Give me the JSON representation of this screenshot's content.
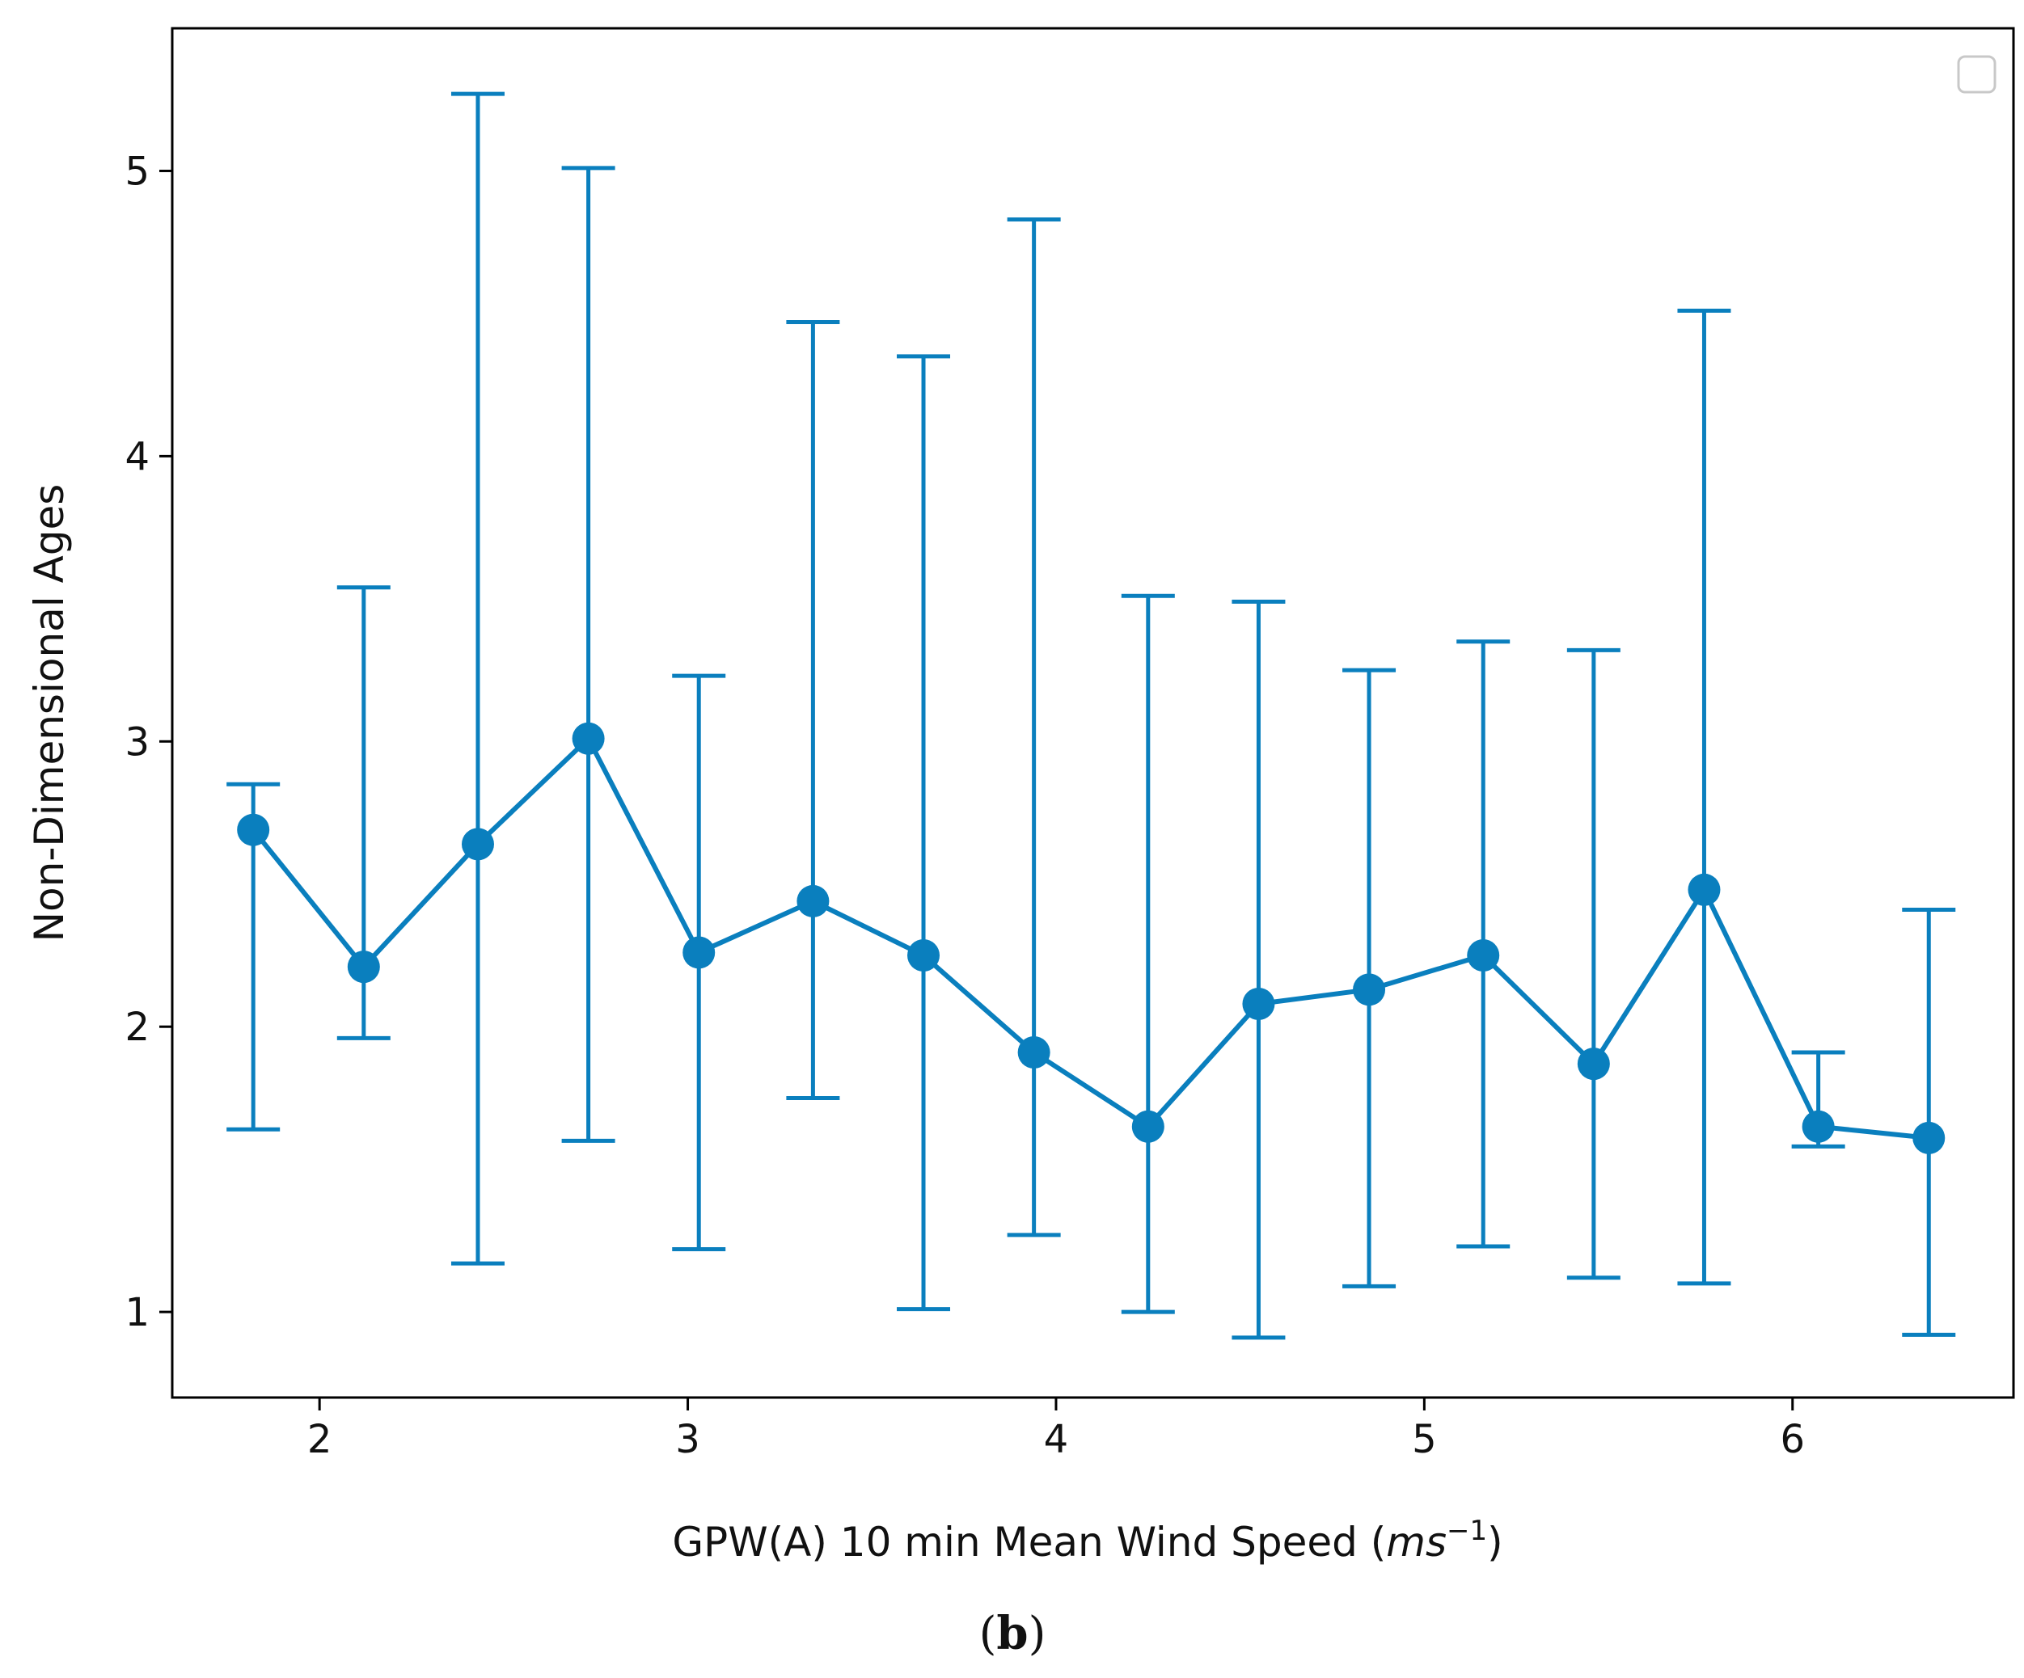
{
  "chart_data": {
    "type": "line",
    "title": "",
    "xlabel": "GPW(A) 10 min Mean Wind Speed",
    "xlabel_unit_base": "ms",
    "xlabel_unit_exp": "−1",
    "ylabel": "Non-Dimensional Ages",
    "xlim": [
      1.6,
      6.6
    ],
    "ylim": [
      0.7,
      5.5
    ],
    "xticks": [
      2,
      3,
      4,
      5,
      6
    ],
    "xtick_labels": [
      "2",
      "3",
      "4",
      "5",
      "6"
    ],
    "yticks": [
      1,
      2,
      3,
      4,
      5
    ],
    "ytick_labels": [
      "1",
      "2",
      "3",
      "4",
      "5"
    ],
    "grid": false,
    "legend": "top-right (empty)",
    "color": "#0a7fbe",
    "series": [
      {
        "name": "",
        "x": [
          1.82,
          2.12,
          2.43,
          2.73,
          3.03,
          3.34,
          3.64,
          3.94,
          4.25,
          4.55,
          4.85,
          5.16,
          5.46,
          5.76,
          6.07,
          6.37
        ],
        "y": [
          2.69,
          2.21,
          2.64,
          3.01,
          2.26,
          2.44,
          2.25,
          1.91,
          1.65,
          2.08,
          2.13,
          2.25,
          1.87,
          2.48,
          1.65,
          1.61
        ],
        "lower": [
          1.64,
          1.96,
          1.17,
          1.6,
          1.22,
          1.75,
          1.01,
          1.27,
          1.0,
          0.91,
          1.09,
          1.23,
          1.12,
          1.1,
          1.58,
          0.92
        ],
        "upper": [
          2.85,
          3.54,
          5.27,
          5.01,
          3.23,
          4.47,
          4.35,
          4.83,
          3.51,
          3.49,
          3.25,
          3.35,
          3.32,
          4.51,
          1.91,
          2.41
        ]
      }
    ]
  },
  "caption": "(b)"
}
